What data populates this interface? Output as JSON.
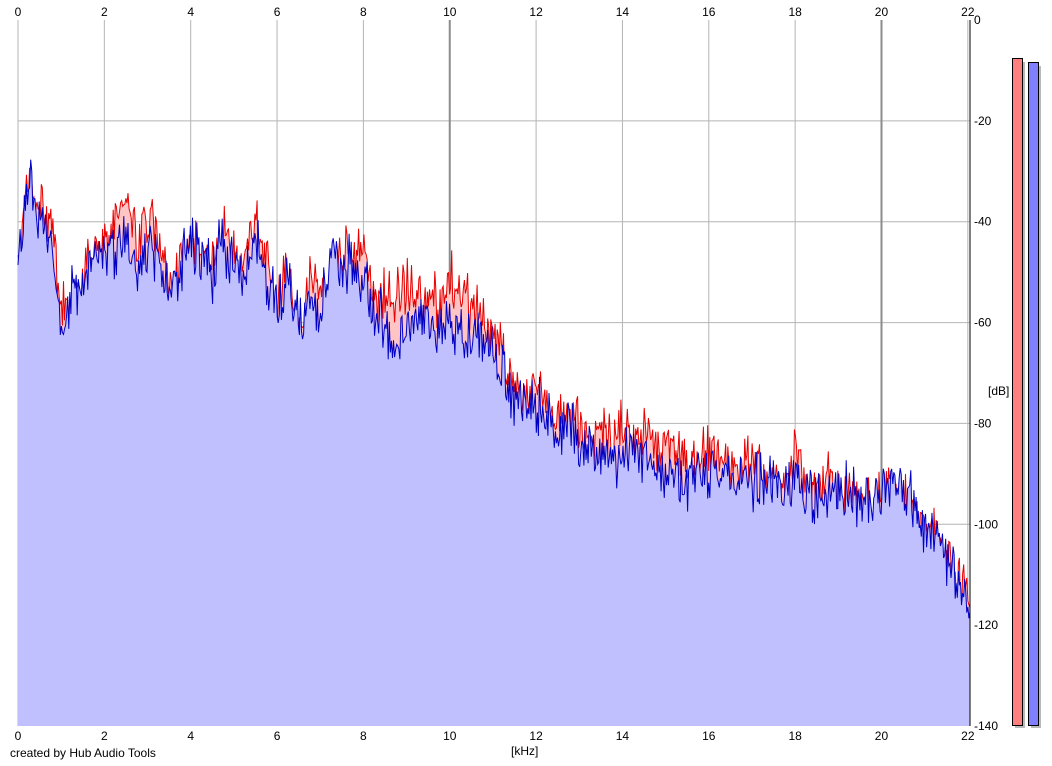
{
  "credit": "created by Hub Audio Tools",
  "x_unit": "[kHz]",
  "y_unit": "[dB]",
  "chart_data": {
    "type": "area",
    "xlabel": "[kHz]",
    "ylabel": "[dB]",
    "xlim": [
      0,
      22.05
    ],
    "ylim": [
      -140,
      0
    ],
    "x_ticks": [
      "0",
      "2",
      "4",
      "6",
      "8",
      "10",
      "12",
      "14",
      "16",
      "18",
      "20",
      "22"
    ],
    "y_ticks": [
      "0",
      "-20",
      "-40",
      "-60",
      "-80",
      "-100",
      "-120",
      "-140"
    ],
    "grid": true,
    "x": [
      0,
      0.25,
      0.5,
      0.75,
      1,
      1.25,
      1.5,
      1.75,
      2,
      2.25,
      2.5,
      2.75,
      3,
      3.25,
      3.5,
      3.75,
      4,
      4.25,
      4.5,
      4.75,
      5,
      5.25,
      5.5,
      5.75,
      6,
      6.25,
      6.5,
      6.75,
      7,
      7.25,
      7.5,
      7.75,
      8,
      8.25,
      8.5,
      8.75,
      9,
      9.25,
      9.5,
      9.75,
      10,
      10.25,
      10.5,
      10.75,
      11,
      11.25,
      11.5,
      11.75,
      12,
      12.25,
      12.5,
      12.75,
      13,
      13.25,
      13.5,
      13.75,
      14,
      14.25,
      14.5,
      14.75,
      15,
      15.25,
      15.5,
      15.75,
      16,
      16.25,
      16.5,
      16.75,
      17,
      17.25,
      17.5,
      17.75,
      18,
      18.25,
      18.5,
      18.75,
      19,
      19.25,
      19.5,
      19.75,
      20,
      20.25,
      20.5,
      20.75,
      21,
      21.25,
      21.5,
      21.75,
      22
    ],
    "series": [
      {
        "color": "#e80000",
        "fill": "#ffc4c4",
        "values": [
          -48,
          -33,
          -37,
          -40,
          -58,
          -57,
          -53,
          -46,
          -44,
          -42,
          -34,
          -45,
          -39,
          -43,
          -54,
          -48,
          -47,
          -43,
          -49,
          -41,
          -47,
          -48,
          -40,
          -48,
          -57,
          -48,
          -63,
          -51,
          -54,
          -55,
          -46,
          -46,
          -45,
          -55,
          -55,
          -56,
          -52,
          -55,
          -54,
          -57,
          -51,
          -54,
          -56,
          -60,
          -62,
          -66,
          -73,
          -76,
          -75,
          -76,
          -79,
          -79,
          -80,
          -84,
          -82,
          -85,
          -80,
          -86,
          -80,
          -84,
          -85,
          -86,
          -88,
          -87,
          -86,
          -87,
          -90,
          -89,
          -87,
          -90,
          -90,
          -90,
          -87,
          -92,
          -94,
          -90,
          -95,
          -94,
          -93,
          -96,
          -95,
          -93,
          -94,
          -98,
          -99,
          -102,
          -107,
          -112,
          -114
        ]
      },
      {
        "color": "#0000c4",
        "fill": "#c0c0ff",
        "values": [
          -50,
          -30,
          -40,
          -42,
          -61,
          -53,
          -55,
          -47,
          -47,
          -46,
          -44,
          -50,
          -45,
          -46,
          -55,
          -50,
          -43,
          -48,
          -50,
          -43,
          -50,
          -50,
          -44,
          -52,
          -57,
          -52,
          -61,
          -58,
          -58,
          -47,
          -49,
          -49,
          -52,
          -57,
          -60,
          -63,
          -61,
          -59,
          -59,
          -61,
          -60,
          -62,
          -63,
          -63,
          -66,
          -70,
          -75,
          -75,
          -76,
          -78,
          -83,
          -80,
          -85,
          -85,
          -86,
          -87,
          -88,
          -86,
          -87,
          -87,
          -91,
          -90,
          -92,
          -88,
          -89,
          -89,
          -91,
          -92,
          -91,
          -93,
          -92,
          -91,
          -91,
          -94,
          -96,
          -94,
          -95,
          -93,
          -96,
          -95,
          -95,
          -90,
          -93,
          -96,
          -101,
          -103,
          -108,
          -112,
          -116
        ]
      }
    ],
    "meters": [
      {
        "color": "#ff8080",
        "level": 0.946
      },
      {
        "color": "#8080ff",
        "level": 0.94
      }
    ]
  }
}
